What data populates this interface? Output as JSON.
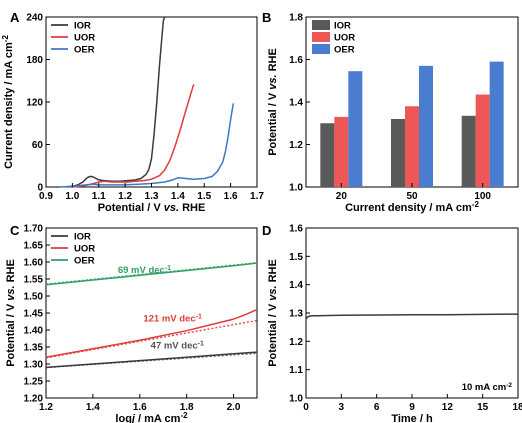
{
  "chart_data": [
    {
      "panel": "A",
      "type": "line",
      "xlabel_parts": [
        "Potential / V ",
        "vs.",
        " RHE"
      ],
      "ylabel_parts": [
        "Current density / mA cm",
        "-2"
      ],
      "xlim": [
        0.9,
        1.7
      ],
      "ylim": [
        0,
        240
      ],
      "xticks": [
        "0.9",
        "1.0",
        "1.1",
        "1.2",
        "1.3",
        "1.4",
        "1.5",
        "1.6",
        "1.7"
      ],
      "yticks": [
        "0",
        "60",
        "120",
        "180",
        "240"
      ],
      "legend_position": "top-left",
      "series": [
        {
          "name": "IOR",
          "color": "#3a3a3a",
          "x": [
            0.98,
            1.0,
            1.02,
            1.04,
            1.05,
            1.06,
            1.07,
            1.08,
            1.09,
            1.1,
            1.12,
            1.15,
            1.18,
            1.21,
            1.24,
            1.26,
            1.28,
            1.29,
            1.3,
            1.31,
            1.32,
            1.33,
            1.34,
            1.345,
            1.35
          ],
          "y": [
            0,
            1,
            3,
            7,
            11,
            14,
            15,
            14,
            12,
            10,
            9,
            8,
            8,
            9,
            10,
            12,
            18,
            25,
            40,
            75,
            120,
            170,
            215,
            235,
            240
          ]
        },
        {
          "name": "UOR",
          "color": "#e03c3c",
          "x": [
            1.0,
            1.03,
            1.06,
            1.08,
            1.1,
            1.12,
            1.15,
            1.18,
            1.21,
            1.24,
            1.27,
            1.3,
            1.33,
            1.35,
            1.37,
            1.39,
            1.41,
            1.43,
            1.45,
            1.46
          ],
          "y": [
            0,
            1,
            3,
            5,
            7,
            8,
            7,
            7,
            7,
            8,
            9,
            11,
            16,
            24,
            38,
            58,
            82,
            108,
            133,
            145
          ]
        },
        {
          "name": "OER",
          "color": "#3f78c4",
          "x": [
            0.95,
            1.0,
            1.05,
            1.08,
            1.1,
            1.13,
            1.16,
            1.2,
            1.25,
            1.3,
            1.35,
            1.38,
            1.4,
            1.43,
            1.46,
            1.5,
            1.53,
            1.55,
            1.57,
            1.58,
            1.59,
            1.6,
            1.61
          ],
          "y": [
            0,
            1,
            3,
            4,
            3,
            3,
            3,
            3,
            4,
            5,
            7,
            10,
            13,
            12,
            11,
            12,
            15,
            22,
            35,
            50,
            70,
            95,
            118
          ]
        }
      ]
    },
    {
      "panel": "B",
      "type": "bar",
      "xlabel_parts": [
        "Current density / mA cm",
        "-2"
      ],
      "ylabel_parts": [
        "Potential / V ",
        "vs.",
        " RHE"
      ],
      "categories": [
        "20",
        "50",
        "100"
      ],
      "ylim": [
        1.0,
        1.8
      ],
      "yticks": [
        "1.0",
        "1.2",
        "1.4",
        "1.6",
        "1.8"
      ],
      "legend_position": "top-left",
      "series": [
        {
          "name": "IOR",
          "color": "#595959",
          "values": [
            1.3,
            1.32,
            1.335
          ]
        },
        {
          "name": "UOR",
          "color": "#ee5555",
          "values": [
            1.33,
            1.38,
            1.435
          ]
        },
        {
          "name": "OER",
          "color": "#4a7cd0",
          "values": [
            1.545,
            1.57,
            1.59
          ]
        }
      ]
    },
    {
      "panel": "C",
      "type": "line",
      "xlabel_parts": [
        "log",
        "j",
        " / mA cm",
        "-2"
      ],
      "ylabel_parts": [
        "Potential / V ",
        "vs.",
        " RHE"
      ],
      "xlim": [
        1.2,
        2.1
      ],
      "ylim": [
        1.2,
        1.7
      ],
      "xticks": [
        "1.2",
        "1.4",
        "1.6",
        "1.8",
        "2.0"
      ],
      "yticks": [
        "1.20",
        "1.25",
        "1.30",
        "1.35",
        "1.40",
        "1.45",
        "1.50",
        "1.55",
        "1.60",
        "1.65",
        "1.70"
      ],
      "legend_position": "top-left",
      "annotations": [
        {
          "text": "69 mV dec",
          "sup": "-1",
          "color": "#2fa066",
          "x": 1.62,
          "y": 1.567
        },
        {
          "text": "121 mV dec",
          "sup": "-1",
          "color": "#e03c3c",
          "x": 1.74,
          "y": 1.425
        },
        {
          "text": "47 mV dec",
          "sup": "-1",
          "color": "#555555",
          "x": 1.76,
          "y": 1.345
        }
      ],
      "series": [
        {
          "name": "IOR",
          "color": "#3a3a3a",
          "x": [
            1.2,
            1.4,
            1.6,
            1.8,
            2.0,
            2.1
          ],
          "y": [
            1.29,
            1.3,
            1.31,
            1.32,
            1.33,
            1.335
          ]
        },
        {
          "name": "UOR",
          "color": "#e03c3c",
          "x": [
            1.2,
            1.4,
            1.6,
            1.8,
            1.9,
            2.0,
            2.05,
            2.1
          ],
          "y": [
            1.32,
            1.345,
            1.37,
            1.398,
            1.415,
            1.432,
            1.445,
            1.46
          ]
        },
        {
          "name": "OER",
          "color": "#2fa066",
          "x": [
            1.2,
            1.4,
            1.6,
            1.8,
            2.0,
            2.1
          ],
          "y": [
            1.533,
            1.547,
            1.561,
            1.575,
            1.589,
            1.597
          ]
        }
      ],
      "fit_lines": [
        {
          "of": "IOR",
          "color": "#555555",
          "x": [
            1.2,
            2.1
          ],
          "y": [
            1.2895,
            1.3315
          ]
        },
        {
          "of": "UOR",
          "color": "#e03c3c",
          "x": [
            1.2,
            2.1
          ],
          "y": [
            1.318,
            1.428
          ]
        },
        {
          "of": "OER",
          "color": "#2fa066",
          "x": [
            1.2,
            2.1
          ],
          "y": [
            1.535,
            1.598
          ]
        }
      ]
    },
    {
      "panel": "D",
      "type": "line",
      "xlabel": "Time / h",
      "ylabel_parts": [
        "Potential / V ",
        "vs.",
        " RHE"
      ],
      "xlim": [
        0,
        18
      ],
      "ylim": [
        1.0,
        1.6
      ],
      "xticks": [
        "0",
        "3",
        "6",
        "9",
        "12",
        "15",
        "18"
      ],
      "yticks": [
        "1.0",
        "1.1",
        "1.2",
        "1.3",
        "1.4",
        "1.5",
        "1.6"
      ],
      "annotation": {
        "text": "10 mA cm",
        "sup": "-2"
      },
      "series": [
        {
          "name": "",
          "color": "#3a3a3a",
          "x": [
            0,
            0.2,
            0.5,
            1,
            3,
            6,
            9,
            12,
            15,
            18
          ],
          "y": [
            1.28,
            1.288,
            1.29,
            1.29,
            1.292,
            1.293,
            1.294,
            1.294,
            1.295,
            1.296
          ]
        }
      ]
    }
  ]
}
